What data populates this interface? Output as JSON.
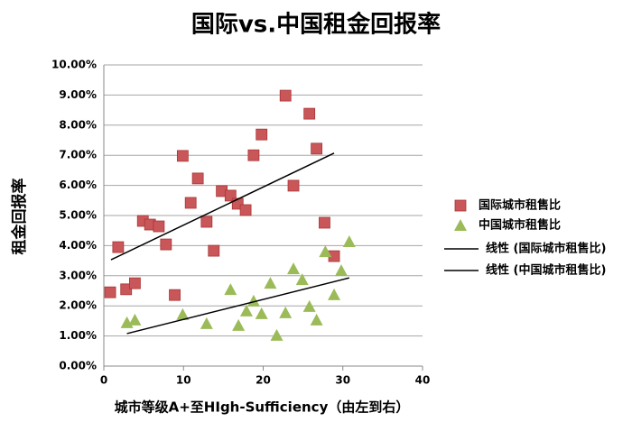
{
  "chart_data": {
    "type": "scatter",
    "title": "国际vs.中国租金回报率",
    "x_label": "城市等级A+至HIgh-Sufficiency（由左到右）",
    "y_label": "租金回报率",
    "xlim": [
      0,
      40
    ],
    "xticks": [
      0,
      10,
      20,
      30,
      40
    ],
    "ylim": [
      0,
      10
    ],
    "yticks": [
      {
        "value": 0,
        "label": "0.00%"
      },
      {
        "value": 1,
        "label": "1.00%"
      },
      {
        "value": 2,
        "label": "2.00%"
      },
      {
        "value": 3,
        "label": "3.00%"
      },
      {
        "value": 4,
        "label": "4.00%"
      },
      {
        "value": 5,
        "label": "5.00%"
      },
      {
        "value": 6,
        "label": "6.00%"
      },
      {
        "value": 7,
        "label": "7.00%"
      },
      {
        "value": 8,
        "label": "8.00%"
      },
      {
        "value": 9,
        "label": "9.00%"
      },
      {
        "value": 10,
        "label": "10.00%"
      }
    ],
    "grid": true,
    "legend": "right",
    "series": [
      {
        "name": "国际城市租售比",
        "type": "scatter",
        "marker": "square",
        "color": "#c9575a",
        "x": [
          0.8,
          1.8,
          2.8,
          3.9,
          4.9,
          5.8,
          6.9,
          7.8,
          8.9,
          9.9,
          10.9,
          11.8,
          12.9,
          13.8,
          14.8,
          15.9,
          16.8,
          17.8,
          18.8,
          19.8,
          22.8,
          23.8,
          25.8,
          26.7,
          27.7,
          28.9
        ],
        "values": [
          2.45,
          3.95,
          2.55,
          2.75,
          4.82,
          4.7,
          4.64,
          4.04,
          2.36,
          6.98,
          5.42,
          6.23,
          4.79,
          3.83,
          5.81,
          5.66,
          5.39,
          5.18,
          7.0,
          7.69,
          8.98,
          5.99,
          8.38,
          7.22,
          4.76,
          3.65
        ]
      },
      {
        "name": "中国城市租售比",
        "type": "scatter",
        "marker": "triangle",
        "color": "#9bbb59",
        "x": [
          2.9,
          3.9,
          9.9,
          12.9,
          15.9,
          16.9,
          17.9,
          18.8,
          19.8,
          20.9,
          21.7,
          22.8,
          23.8,
          24.9,
          25.8,
          26.7,
          27.8,
          28.9,
          29.8,
          30.8
        ],
        "values": [
          1.44,
          1.53,
          1.71,
          1.41,
          2.54,
          1.35,
          1.83,
          2.16,
          1.74,
          2.75,
          1.02,
          1.77,
          3.23,
          2.87,
          1.98,
          1.53,
          3.8,
          2.37,
          3.17,
          4.13
        ]
      },
      {
        "name": "线性 (国际城市租售比)",
        "type": "line",
        "color": "#000000",
        "x": [
          0.9,
          28.9
        ],
        "values": [
          3.53,
          7.07
        ]
      },
      {
        "name": "线性 (中国城市租售比)",
        "type": "line",
        "color": "#000000",
        "x": [
          2.9,
          30.8
        ],
        "values": [
          1.08,
          2.93
        ]
      }
    ]
  }
}
